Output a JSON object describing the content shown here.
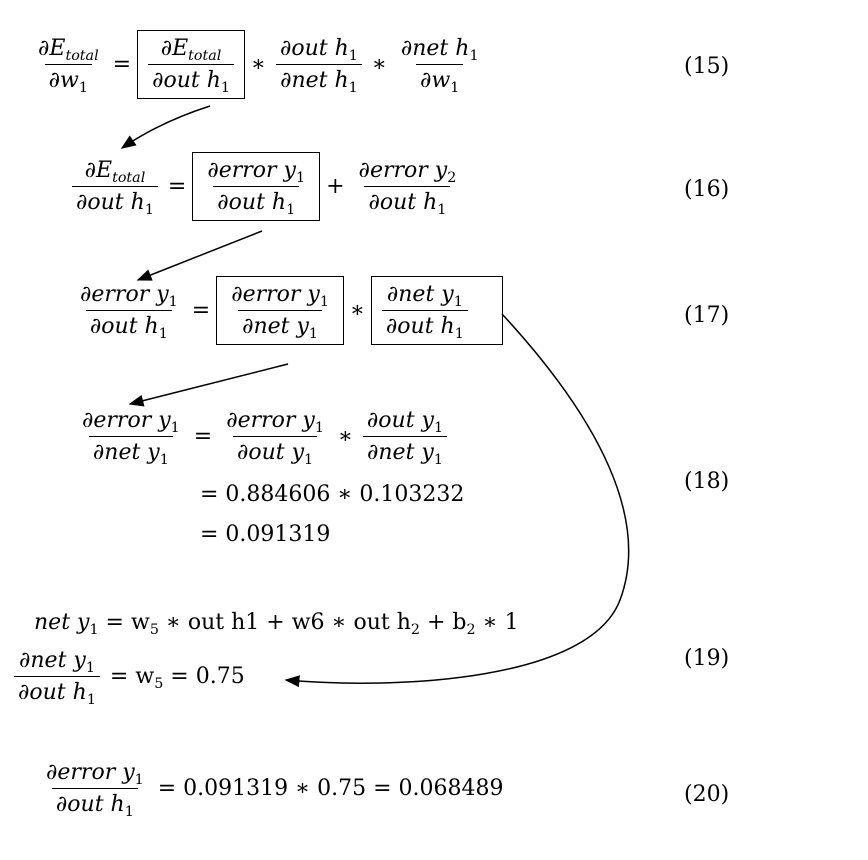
{
  "symbols": {
    "partial": "∂",
    "equals": "=",
    "times": "∗",
    "plus": "+"
  },
  "labels": {
    "E": "E",
    "total": "total",
    "w": "w",
    "one": "1",
    "two": "2",
    "five": "5",
    "out_h": "out h",
    "net_h": "net h",
    "error_y": "error y",
    "net_y": "net y",
    "out_y": "out y"
  },
  "eq18": {
    "line2": "= 0.884606 ∗ 0.103232",
    "line3": "= 0.091319"
  },
  "eq19": {
    "line1_net": "net y",
    "line1_rest_a": " = w",
    "line1_rest_b": " ∗ out h1 + w6 ∗ out h",
    "line1_rest_c": " + b",
    "line1_rest_d": " ∗ 1",
    "rhs_a": "= w",
    "rhs_b": " = 0.75"
  },
  "eq20": {
    "rhs": "= 0.091319 ∗ 0.75 = 0.068489"
  },
  "tags": [
    "(15)",
    "(16)",
    "(17)",
    "(18)",
    "(19)",
    "(20)"
  ]
}
